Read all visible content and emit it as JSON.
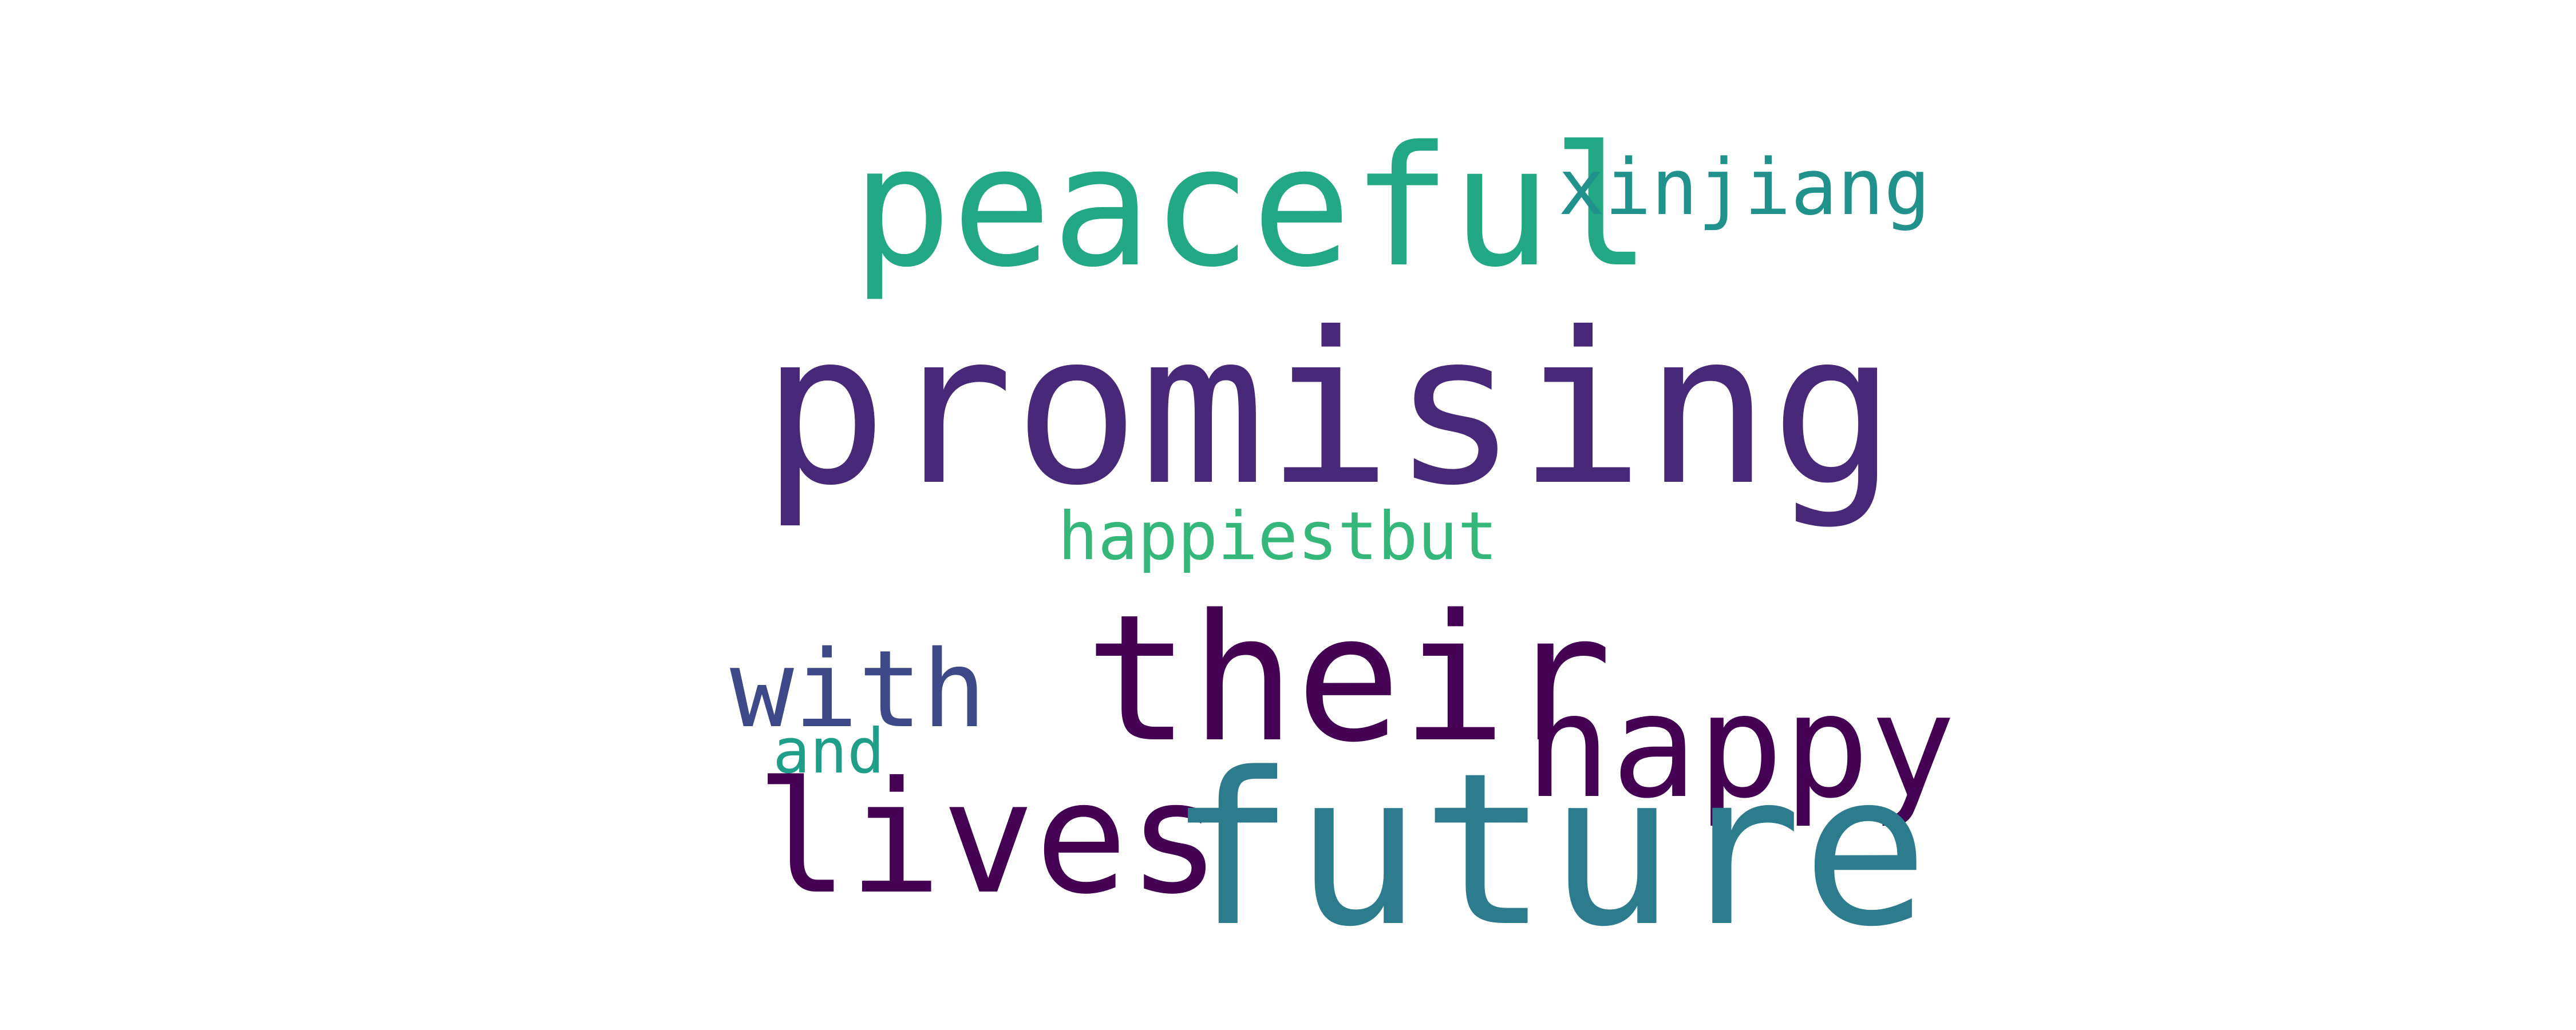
{
  "words": [
    {
      "text": "promising",
      "color": "#482878"
    },
    {
      "text": "peaceful",
      "color": "#22a884"
    },
    {
      "text": "xinjiang",
      "color": "#21918c"
    },
    {
      "text": "happiestbut",
      "color": "#35b779"
    },
    {
      "text": "their",
      "color": "#440154"
    },
    {
      "text": "with",
      "color": "#3e4989"
    },
    {
      "text": "and",
      "color": "#1f9e89"
    },
    {
      "text": "happy",
      "color": "#440154"
    },
    {
      "text": "lives",
      "color": "#440154"
    },
    {
      "text": "future",
      "color": "#2c7c8e"
    }
  ]
}
